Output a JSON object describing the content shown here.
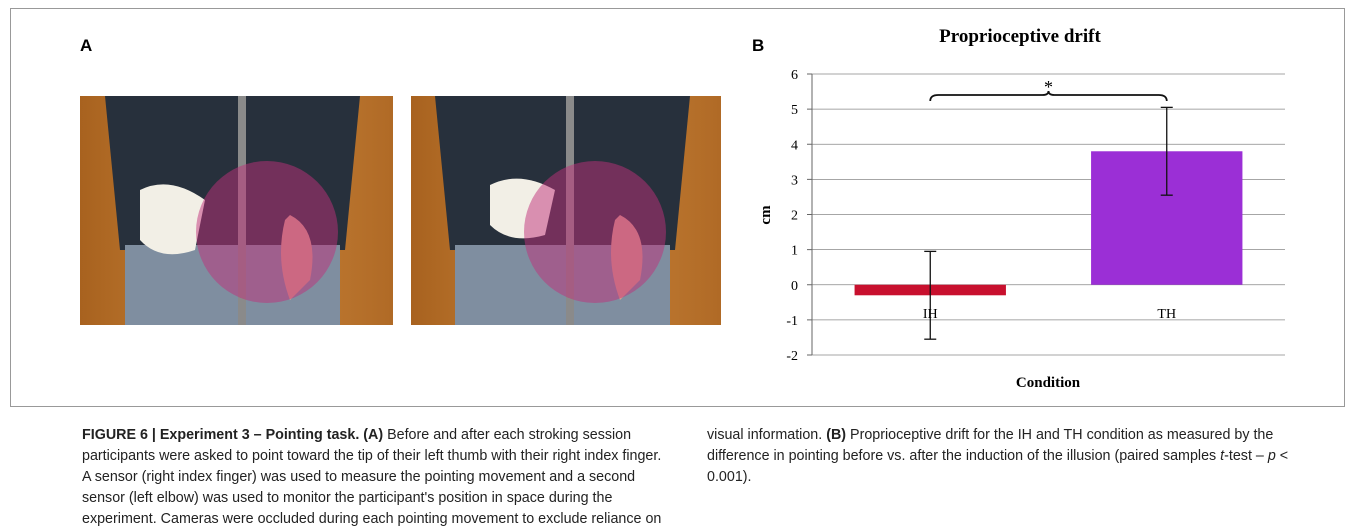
{
  "panel_a_label": "A",
  "chart_data": {
    "type": "bar",
    "panel_label": "B",
    "title": "Proprioceptive drift",
    "categories": [
      "IH",
      "TH"
    ],
    "values": [
      -0.3,
      3.8
    ],
    "errors": [
      1.25,
      1.25
    ],
    "colors": [
      "#c8102e",
      "#9b2fd6"
    ],
    "ylim": [
      -2,
      6
    ],
    "yticks": [
      -2,
      -1,
      0,
      1,
      2,
      3,
      4,
      5,
      6
    ],
    "grid": true,
    "ylabel": "cm",
    "xlabel": "Condition",
    "annotation": "*"
  },
  "caption": {
    "runs": [
      {
        "text": "FIGURE 6 | Experiment 3 – Pointing task. (A)",
        "bold": true
      },
      {
        "text": " Before and after each stroking session participants were asked to point toward the tip of their left thumb with their right index finger. A sensor (right index finger) was used to measure the pointing movement and a second sensor (left elbow) was used to monitor the participant's position in space during the experiment. Cameras were occluded during each pointing movement to exclude reliance on visual information. "
      },
      {
        "text": "(B)",
        "bold": true
      },
      {
        "text": " Proprioceptive drift for the IH and TH condition as measured by the difference in pointing before vs. after the induction of the illusion (paired samples "
      },
      {
        "text": "t",
        "italic": true
      },
      {
        "text": "-test – "
      },
      {
        "text": "p",
        "italic": true
      },
      {
        "text": " < 0.001)."
      }
    ]
  }
}
